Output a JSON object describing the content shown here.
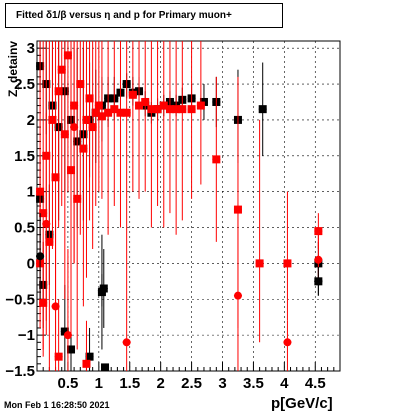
{
  "title": "Fitted δ1/β versus η and p for Primary muon+",
  "footer": "Mon Feb  1 16:28:50 2021",
  "colors": {
    "black_series": "#000000",
    "red_series": "#ff0000",
    "grid": "#000000"
  },
  "chart_data": {
    "type": "scatter",
    "xlabel": "p[GeV/c]",
    "ylabel": "Z_detainv",
    "xlim": [
      0.0,
      4.9
    ],
    "ylim": [
      -1.5,
      3.1
    ],
    "xticks": [
      0.5,
      1,
      1.5,
      2,
      2.5,
      3,
      3.5,
      4,
      4.5
    ],
    "xtick_labels": [
      "0.5",
      "1",
      "1.5",
      "2",
      "2.5",
      "3",
      "3.5",
      "4",
      "4.5"
    ],
    "yticks": [
      -1.5,
      -1,
      -0.5,
      0,
      0.5,
      1,
      1.5,
      2,
      2.5,
      3
    ],
    "ytick_labels": [
      "−1.5",
      "−1",
      "−0.5",
      "0",
      "0.5",
      "1",
      "1.5",
      "2",
      "2.5",
      "3"
    ],
    "grid": true,
    "series": [
      {
        "color": "black",
        "marker": "square",
        "points": [
          {
            "x": 0.05,
            "y": 2.75,
            "ylo": 2.4,
            "yhi": 3.1
          },
          {
            "x": 0.15,
            "y": 2.5,
            "ylo": 1.8,
            "yhi": 3.1
          },
          {
            "x": 0.25,
            "y": 2.2,
            "ylo": 1.2,
            "yhi": 3.1
          },
          {
            "x": 0.35,
            "y": 1.9,
            "ylo": 0.6,
            "yhi": 3.1
          },
          {
            "x": 0.45,
            "y": 2.4,
            "ylo": 1.0,
            "yhi": 3.1
          },
          {
            "x": 0.55,
            "y": 2.0,
            "ylo": 0.8,
            "yhi": 3.1
          },
          {
            "x": 0.65,
            "y": 1.7,
            "ylo": 0.5,
            "yhi": 3.0
          },
          {
            "x": 0.75,
            "y": 1.8,
            "ylo": 0.6,
            "yhi": 3.0
          },
          {
            "x": 0.85,
            "y": 2.0,
            "ylo": 1.2,
            "yhi": 2.8
          },
          {
            "x": 0.95,
            "y": 2.1,
            "ylo": 1.4,
            "yhi": 2.7
          },
          {
            "x": 1.05,
            "y": 2.2,
            "ylo": 1.7,
            "yhi": 2.6
          },
          {
            "x": 1.15,
            "y": 2.3,
            "ylo": 1.9,
            "yhi": 2.6
          },
          {
            "x": 1.25,
            "y": 2.3,
            "ylo": 2.0,
            "yhi": 2.6
          },
          {
            "x": 1.35,
            "y": 2.38,
            "ylo": 2.2,
            "yhi": 2.55
          },
          {
            "x": 1.45,
            "y": 2.5,
            "ylo": 2.3,
            "yhi": 2.65
          },
          {
            "x": 1.55,
            "y": 2.38,
            "ylo": 2.2,
            "yhi": 2.6
          },
          {
            "x": 1.65,
            "y": 2.4,
            "ylo": 2.2,
            "yhi": 2.6
          },
          {
            "x": 1.75,
            "y": 2.2,
            "ylo": 2.05,
            "yhi": 2.4
          },
          {
            "x": 1.85,
            "y": 2.1,
            "ylo": 1.95,
            "yhi": 2.25
          },
          {
            "x": 1.95,
            "y": 2.15,
            "ylo": 2.0,
            "yhi": 2.3
          },
          {
            "x": 2.05,
            "y": 2.2,
            "ylo": 2.05,
            "yhi": 2.35
          },
          {
            "x": 2.15,
            "y": 2.25,
            "ylo": 2.1,
            "yhi": 2.4
          },
          {
            "x": 2.25,
            "y": 2.2,
            "ylo": 2.05,
            "yhi": 2.35
          },
          {
            "x": 2.35,
            "y": 2.28,
            "ylo": 2.1,
            "yhi": 2.45
          },
          {
            "x": 2.5,
            "y": 2.3,
            "ylo": 2.1,
            "yhi": 2.5
          },
          {
            "x": 2.7,
            "y": 2.25,
            "ylo": 2.0,
            "yhi": 2.5
          },
          {
            "x": 2.9,
            "y": 2.25,
            "ylo": 1.9,
            "yhi": 2.6
          },
          {
            "x": 3.25,
            "y": 2.0,
            "ylo": 1.4,
            "yhi": 2.7
          },
          {
            "x": 3.65,
            "y": 2.15,
            "ylo": 1.5,
            "yhi": 2.8
          },
          {
            "x": 0.05,
            "y": 0.9,
            "ylo": 0.3,
            "yhi": 1.5
          },
          {
            "x": 0.1,
            "y": -0.3,
            "ylo": -0.9,
            "yhi": 0.3
          },
          {
            "x": 0.2,
            "y": 0.4,
            "ylo": -0.3,
            "yhi": 1.1
          },
          {
            "x": 0.45,
            "y": -0.95,
            "ylo": -1.5,
            "yhi": -0.3
          },
          {
            "x": 0.55,
            "y": -1.2,
            "ylo": -1.5,
            "yhi": -0.6
          },
          {
            "x": 0.85,
            "y": -1.3,
            "ylo": -1.5,
            "yhi": -0.9
          },
          {
            "x": 1.05,
            "y": -0.4,
            "ylo": -1.2,
            "yhi": 0.4
          },
          {
            "x": 1.08,
            "y": -0.35,
            "ylo": -0.9,
            "yhi": 0.2
          },
          {
            "x": 1.1,
            "y": -1.45,
            "ylo": -1.5,
            "yhi": -1.4
          },
          {
            "x": 4.55,
            "y": 0.0,
            "ylo": -0.3,
            "yhi": 0.3
          },
          {
            "x": 4.55,
            "y": -0.25,
            "ylo": -0.45,
            "yhi": -0.05
          }
        ]
      },
      {
        "color": "red",
        "marker": "square",
        "points": [
          {
            "x": 0.05,
            "y": 1.0,
            "ylo": -0.6,
            "yhi": 3.1
          },
          {
            "x": 0.1,
            "y": 0.7,
            "ylo": -1.2,
            "yhi": 3.1
          },
          {
            "x": 0.15,
            "y": 1.5,
            "ylo": -0.8,
            "yhi": 3.1
          },
          {
            "x": 0.2,
            "y": 0.3,
            "ylo": -1.5,
            "yhi": 3.1
          },
          {
            "x": 0.25,
            "y": 2.0,
            "ylo": 0.2,
            "yhi": 3.1
          },
          {
            "x": 0.3,
            "y": 1.2,
            "ylo": -1.0,
            "yhi": 3.1
          },
          {
            "x": 0.35,
            "y": 2.4,
            "ylo": 0.5,
            "yhi": 3.1
          },
          {
            "x": 0.4,
            "y": 2.7,
            "ylo": 0.8,
            "yhi": 3.1
          },
          {
            "x": 0.45,
            "y": 1.8,
            "ylo": -0.5,
            "yhi": 3.1
          },
          {
            "x": 0.5,
            "y": 2.9,
            "ylo": 1.0,
            "yhi": 3.1
          },
          {
            "x": 0.55,
            "y": 1.3,
            "ylo": -1.0,
            "yhi": 3.1
          },
          {
            "x": 0.6,
            "y": 2.2,
            "ylo": 0.0,
            "yhi": 3.1
          },
          {
            "x": 0.65,
            "y": 0.9,
            "ylo": -1.2,
            "yhi": 3.1
          },
          {
            "x": 0.7,
            "y": 2.5,
            "ylo": 0.4,
            "yhi": 3.1
          },
          {
            "x": 0.75,
            "y": 1.6,
            "ylo": -0.6,
            "yhi": 3.1
          },
          {
            "x": 0.8,
            "y": 2.0,
            "ylo": -0.2,
            "yhi": 3.1
          },
          {
            "x": 0.85,
            "y": 2.3,
            "ylo": 0.6,
            "yhi": 3.1
          },
          {
            "x": 0.9,
            "y": 1.9,
            "ylo": 0.2,
            "yhi": 3.1
          },
          {
            "x": 0.95,
            "y": 2.1,
            "ylo": 0.8,
            "yhi": 3.1
          },
          {
            "x": 1.0,
            "y": 2.2,
            "ylo": 1.0,
            "yhi": 3.1
          },
          {
            "x": 1.05,
            "y": 2.05,
            "ylo": 0.9,
            "yhi": 3.1
          },
          {
            "x": 1.15,
            "y": 2.1,
            "ylo": 0.4,
            "yhi": 3.1
          },
          {
            "x": 1.25,
            "y": 2.15,
            "ylo": 0.8,
            "yhi": 3.1
          },
          {
            "x": 1.35,
            "y": 2.1,
            "ylo": 0.5,
            "yhi": 3.1
          },
          {
            "x": 1.45,
            "y": 2.1,
            "ylo": 0.9,
            "yhi": 3.1
          },
          {
            "x": 1.55,
            "y": 2.35,
            "ylo": 1.0,
            "yhi": 3.1
          },
          {
            "x": 1.65,
            "y": 2.2,
            "ylo": 0.9,
            "yhi": 3.1
          },
          {
            "x": 1.75,
            "y": 2.25,
            "ylo": 1.0,
            "yhi": 3.1
          },
          {
            "x": 1.85,
            "y": 2.15,
            "ylo": 0.5,
            "yhi": 3.1
          },
          {
            "x": 1.95,
            "y": 2.15,
            "ylo": 0.8,
            "yhi": 3.1
          },
          {
            "x": 2.05,
            "y": 2.2,
            "ylo": 0.5,
            "yhi": 3.1
          },
          {
            "x": 2.15,
            "y": 2.15,
            "ylo": 0.7,
            "yhi": 3.1
          },
          {
            "x": 2.25,
            "y": 2.15,
            "ylo": 0.4,
            "yhi": 3.1
          },
          {
            "x": 2.35,
            "y": 2.15,
            "ylo": 0.6,
            "yhi": 3.1
          },
          {
            "x": 2.5,
            "y": 2.15,
            "ylo": 0.9,
            "yhi": 3.1
          },
          {
            "x": 2.65,
            "y": 2.2,
            "ylo": 1.1,
            "yhi": 3.1
          },
          {
            "x": 2.9,
            "y": 1.45,
            "ylo": 0.3,
            "yhi": 2.6
          },
          {
            "x": 3.25,
            "y": 0.75,
            "ylo": -0.9,
            "yhi": 2.6
          },
          {
            "x": 3.6,
            "y": 0.0,
            "ylo": -1.1,
            "yhi": 2.0
          },
          {
            "x": 4.05,
            "y": 0.0,
            "ylo": -0.8,
            "yhi": 1.0
          },
          {
            "x": 4.55,
            "y": 0.45,
            "ylo": 0.2,
            "yhi": 0.7
          },
          {
            "x": 0.05,
            "y": 0.0,
            "ylo": -0.9,
            "yhi": 0.9
          },
          {
            "x": 0.1,
            "y": -0.55,
            "ylo": -1.3,
            "yhi": 0.3
          },
          {
            "x": 0.35,
            "y": -1.3,
            "ylo": -1.5,
            "yhi": -0.5
          },
          {
            "x": 0.8,
            "y": -1.4,
            "ylo": -1.5,
            "yhi": -0.8
          }
        ]
      },
      {
        "color": "red",
        "marker": "circle",
        "points": [
          {
            "x": 0.15,
            "y": 0.55,
            "ylo": -1.0,
            "yhi": 2.1
          },
          {
            "x": 0.3,
            "y": -0.6,
            "ylo": -1.5,
            "yhi": 0.6
          },
          {
            "x": 0.5,
            "y": -1.0,
            "ylo": -1.5,
            "yhi": 0.2
          },
          {
            "x": 0.6,
            "y": 1.9,
            "ylo": 0.0,
            "yhi": 3.1
          },
          {
            "x": 1.45,
            "y": -1.1,
            "ylo": -1.5,
            "yhi": 0.9
          },
          {
            "x": 3.25,
            "y": -0.45,
            "ylo": -1.5,
            "yhi": 0.8
          },
          {
            "x": 4.05,
            "y": -1.1,
            "ylo": -1.5,
            "yhi": -0.8
          },
          {
            "x": 4.55,
            "y": 0.05,
            "ylo": -0.3,
            "yhi": 0.4
          }
        ]
      },
      {
        "color": "black",
        "marker": "circle",
        "points": [
          {
            "x": 0.05,
            "y": 0.1,
            "ylo": -0.5,
            "yhi": 0.7
          },
          {
            "x": 1.05,
            "y": -0.38,
            "ylo": -0.6,
            "yhi": -0.15
          },
          {
            "x": 4.55,
            "y": -0.25,
            "ylo": -0.45,
            "yhi": -0.05
          }
        ]
      }
    ]
  }
}
